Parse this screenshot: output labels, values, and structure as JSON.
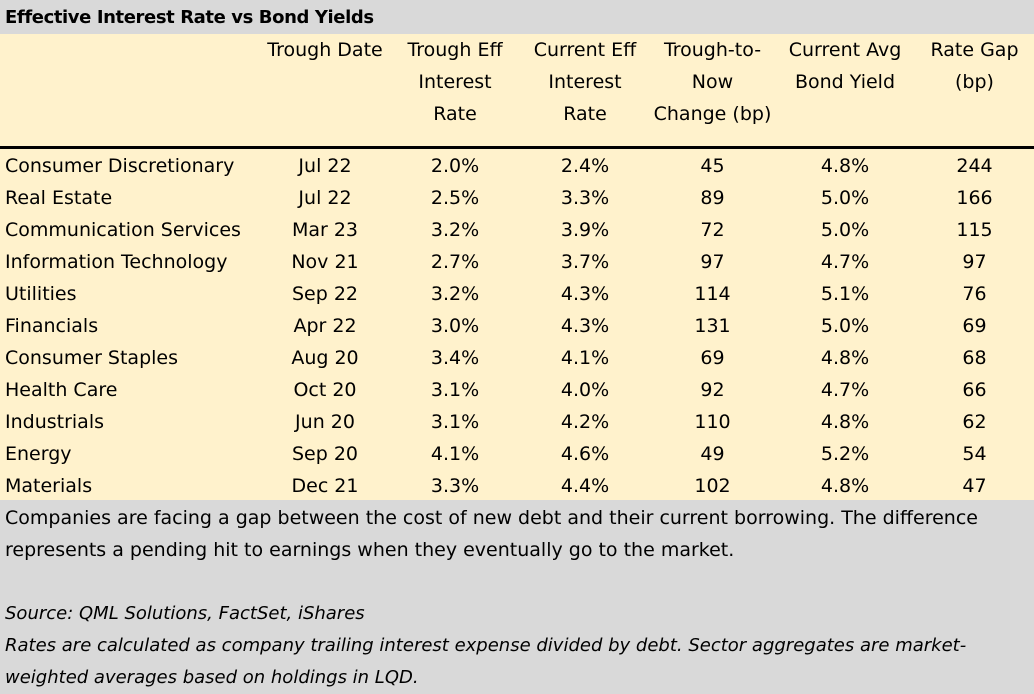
{
  "title": "Effective Interest Rate vs Bond Yields",
  "headers": {
    "trough_date": [
      "Trough Date"
    ],
    "trough_eff": [
      "Trough Eff",
      "Interest",
      "Rate"
    ],
    "current_eff": [
      "Current Eff",
      "Interest",
      "Rate"
    ],
    "change": [
      "Trough-to-",
      "Now",
      "Change (bp)"
    ],
    "bond_yield": [
      "Current Avg",
      "Bond Yield"
    ],
    "rate_gap": [
      "Rate Gap",
      "(bp)"
    ]
  },
  "rows": [
    {
      "sector": "Consumer Discretionary",
      "trough_date": "Jul 22",
      "trough_eff": "2.0%",
      "current_eff": "2.4%",
      "change": "45",
      "bond_yield": "4.8%",
      "rate_gap": "244"
    },
    {
      "sector": "Real Estate",
      "trough_date": "Jul 22",
      "trough_eff": "2.5%",
      "current_eff": "3.3%",
      "change": "89",
      "bond_yield": "5.0%",
      "rate_gap": "166"
    },
    {
      "sector": "Communication Services",
      "trough_date": "Mar 23",
      "trough_eff": "3.2%",
      "current_eff": "3.9%",
      "change": "72",
      "bond_yield": "5.0%",
      "rate_gap": "115"
    },
    {
      "sector": "Information Technology",
      "trough_date": "Nov 21",
      "trough_eff": "2.7%",
      "current_eff": "3.7%",
      "change": "97",
      "bond_yield": "4.7%",
      "rate_gap": "97"
    },
    {
      "sector": "Utilities",
      "trough_date": "Sep 22",
      "trough_eff": "3.2%",
      "current_eff": "4.3%",
      "change": "114",
      "bond_yield": "5.1%",
      "rate_gap": "76"
    },
    {
      "sector": "Financials",
      "trough_date": "Apr 22",
      "trough_eff": "3.0%",
      "current_eff": "4.3%",
      "change": "131",
      "bond_yield": "5.0%",
      "rate_gap": "69"
    },
    {
      "sector": "Consumer Staples",
      "trough_date": "Aug 20",
      "trough_eff": "3.4%",
      "current_eff": "4.1%",
      "change": "69",
      "bond_yield": "4.8%",
      "rate_gap": "68"
    },
    {
      "sector": "Health Care",
      "trough_date": "Oct 20",
      "trough_eff": "3.1%",
      "current_eff": "4.0%",
      "change": "92",
      "bond_yield": "4.7%",
      "rate_gap": "66"
    },
    {
      "sector": "Industrials",
      "trough_date": "Jun 20",
      "trough_eff": "3.1%",
      "current_eff": "4.2%",
      "change": "110",
      "bond_yield": "4.8%",
      "rate_gap": "62"
    },
    {
      "sector": "Energy",
      "trough_date": "Sep 20",
      "trough_eff": "4.1%",
      "current_eff": "4.6%",
      "change": "49",
      "bond_yield": "5.2%",
      "rate_gap": "54"
    },
    {
      "sector": "Materials",
      "trough_date": "Dec 21",
      "trough_eff": "3.3%",
      "current_eff": "4.4%",
      "change": "102",
      "bond_yield": "4.8%",
      "rate_gap": "47"
    }
  ],
  "note": "Companies are facing a gap between the cost of new debt and their current borrowing. The difference represents a pending hit to earnings when they eventually go to the market.",
  "source": "Source: QML Solutions, FactSet, iShares",
  "methodology": "Rates are calculated as company trailing interest expense divided by debt. Sector aggregates are market-weighted averages based on holdings in LQD."
}
